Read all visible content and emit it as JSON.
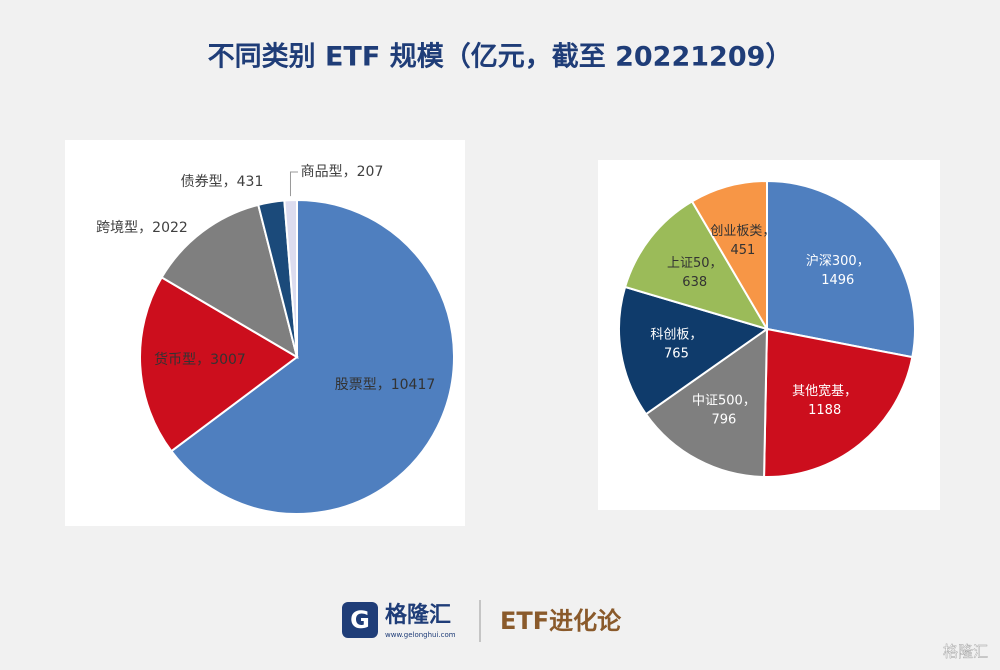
{
  "header": {
    "title": "不同类别 ETF 规模（亿元，截至 20221209）"
  },
  "chart_data": [
    {
      "type": "pie",
      "categories": [
        "股票型",
        "货币型",
        "跨境型",
        "债券型",
        "商品型"
      ],
      "values": [
        10417,
        3007,
        2022,
        431,
        207
      ],
      "colors": [
        "#4f7fbf",
        "#cc0e1d",
        "#7f7f7f",
        "#1b4a7a",
        "#dcdcef"
      ],
      "label_separator": "，"
    },
    {
      "type": "pie",
      "categories": [
        "沪深300",
        "其他宽基",
        "中证500",
        "科创板",
        "上证50",
        "创业板类"
      ],
      "values": [
        1496,
        1188,
        796,
        765,
        638,
        451
      ],
      "colors": [
        "#4f7fbf",
        "#cc0e1d",
        "#7f7f7f",
        "#0f3b6b",
        "#9bbb59",
        "#f79646"
      ],
      "label_separator": "，"
    }
  ],
  "footer": {
    "brand": "格隆汇",
    "url": "www.gelonghui.com",
    "column": "ETF进化论",
    "watermark": "格隆汇"
  }
}
